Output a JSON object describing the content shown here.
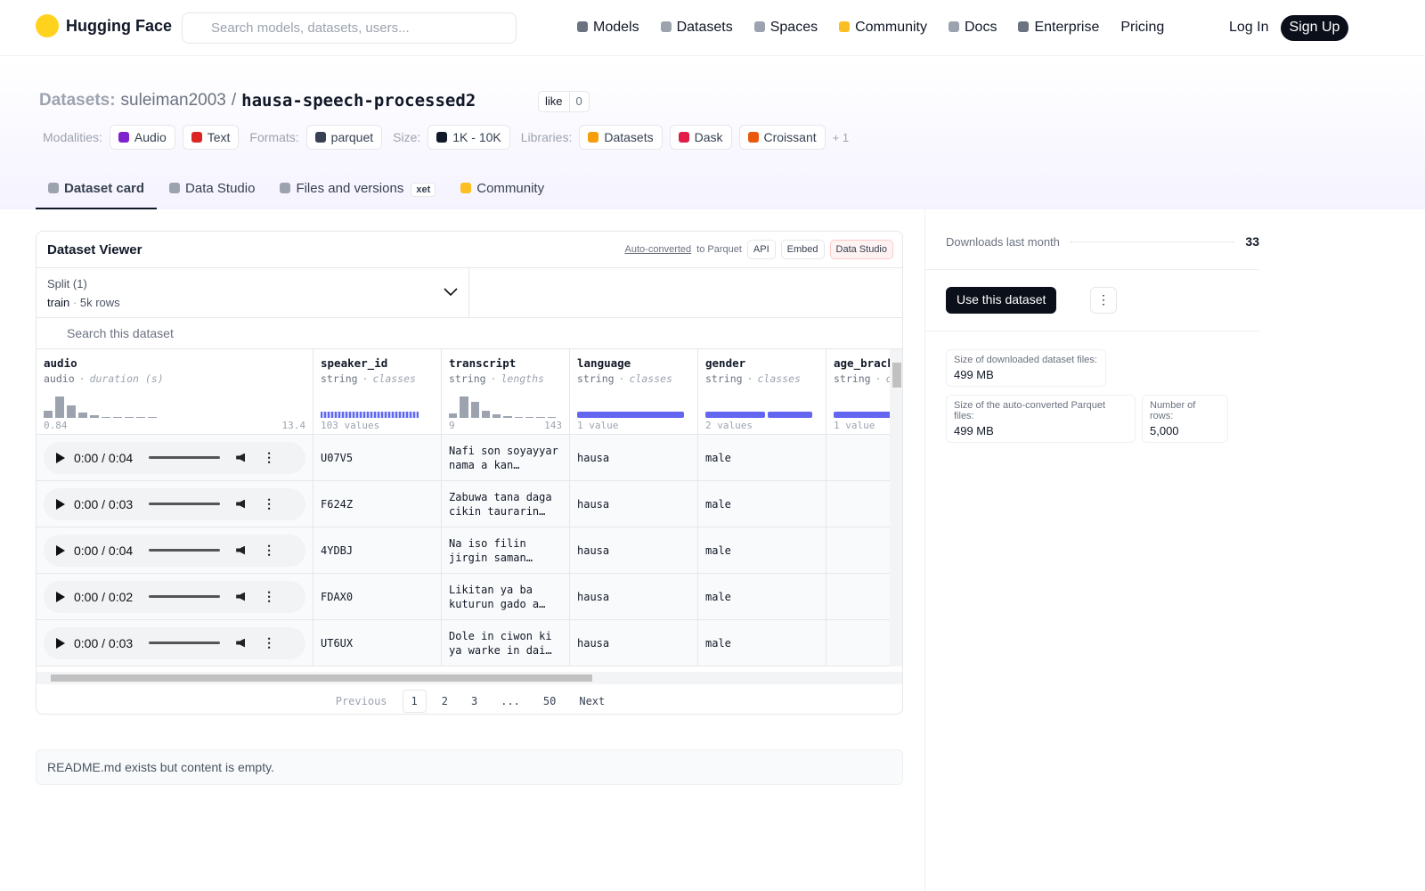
{
  "nav": {
    "brand": "Hugging Face",
    "search_placeholder": "Search models, datasets, users...",
    "links": [
      "Models",
      "Datasets",
      "Spaces",
      "Community",
      "Docs",
      "Enterprise",
      "Pricing"
    ],
    "login": "Log In",
    "signup": "Sign Up"
  },
  "header": {
    "section": "Datasets:",
    "owner": "suleiman2003",
    "separator": "/",
    "name": "hausa-speech-processed2",
    "like": "like",
    "likes": 0,
    "tags": [
      {
        "label": "Modalities:",
        "items": [
          "Audio",
          "Text"
        ]
      },
      {
        "label": "Formats:",
        "items": [
          "parquet"
        ]
      },
      {
        "label": "Size:",
        "items": [
          "1K - 10K"
        ]
      },
      {
        "label": "Libraries:",
        "items": [
          "Datasets",
          "Dask",
          "Croissant"
        ]
      }
    ],
    "more": "+ 1"
  },
  "tabs": {
    "items": [
      "Dataset card",
      "Data Studio",
      "Files and versions",
      "Community"
    ],
    "xet": "xet"
  },
  "viewer": {
    "title": "Dataset Viewer",
    "auto_converted": "Auto-converted",
    "to_parquet": "to Parquet",
    "api": "API",
    "embed": "Embed",
    "data_studio": "Data Studio",
    "split_label": "Split (1)",
    "split": "train",
    "dot": "·",
    "rows_count": "5k rows",
    "search_placeholder": "Search this dataset",
    "columns": [
      {
        "name": "audio",
        "type": "audio",
        "stat": "duration (s)",
        "footer": [
          "0.84",
          "13.4"
        ]
      },
      {
        "name": "speaker_id",
        "type": "string",
        "stat": "classes",
        "footer": [
          "103 values"
        ]
      },
      {
        "name": "transcript",
        "type": "string",
        "stat": "lengths",
        "footer": [
          "9",
          "143"
        ]
      },
      {
        "name": "language",
        "type": "string",
        "stat": "classes",
        "footer": [
          "1 value"
        ]
      },
      {
        "name": "gender",
        "type": "string",
        "stat": "classes",
        "footer": [
          "2 values"
        ]
      },
      {
        "name": "age_brack",
        "type": "string",
        "stat": "c",
        "footer": [
          "1 value"
        ]
      }
    ],
    "rows": [
      [
        "0:00 / 0:04",
        "U07V5",
        "Nafi son soyayyar nama a kan…",
        "hausa",
        "male"
      ],
      [
        "0:00 / 0:03",
        "F624Z",
        "Zabuwa tana daga cikin taurarin…",
        "hausa",
        "male"
      ],
      [
        "0:00 / 0:04",
        "4YDBJ",
        "Na iso filin jirgin saman…",
        "hausa",
        "male"
      ],
      [
        "0:00 / 0:02",
        "FDAX0",
        "Likitan ya ba kuturun gado a…",
        "hausa",
        "male"
      ],
      [
        "0:00 / 0:03",
        "UT6UX",
        "Dole in ciwon ki ya warke in dai…",
        "hausa",
        "male"
      ]
    ],
    "pagination": {
      "previous": "Previous",
      "pages": [
        "1",
        "2",
        "3",
        "...",
        "50"
      ],
      "next": "Next"
    }
  },
  "readme": "README.md exists but content is empty.",
  "sidebar": {
    "downloads_label": "Downloads last month",
    "downloads": 33,
    "use_button": "Use this dataset",
    "stats": [
      {
        "label": "Size of downloaded dataset files:",
        "value": "499 MB"
      },
      {
        "label": "Size of the auto-converted Parquet files:",
        "value": "499 MB"
      },
      {
        "label": "Number of rows:",
        "value": "5,000"
      }
    ]
  }
}
